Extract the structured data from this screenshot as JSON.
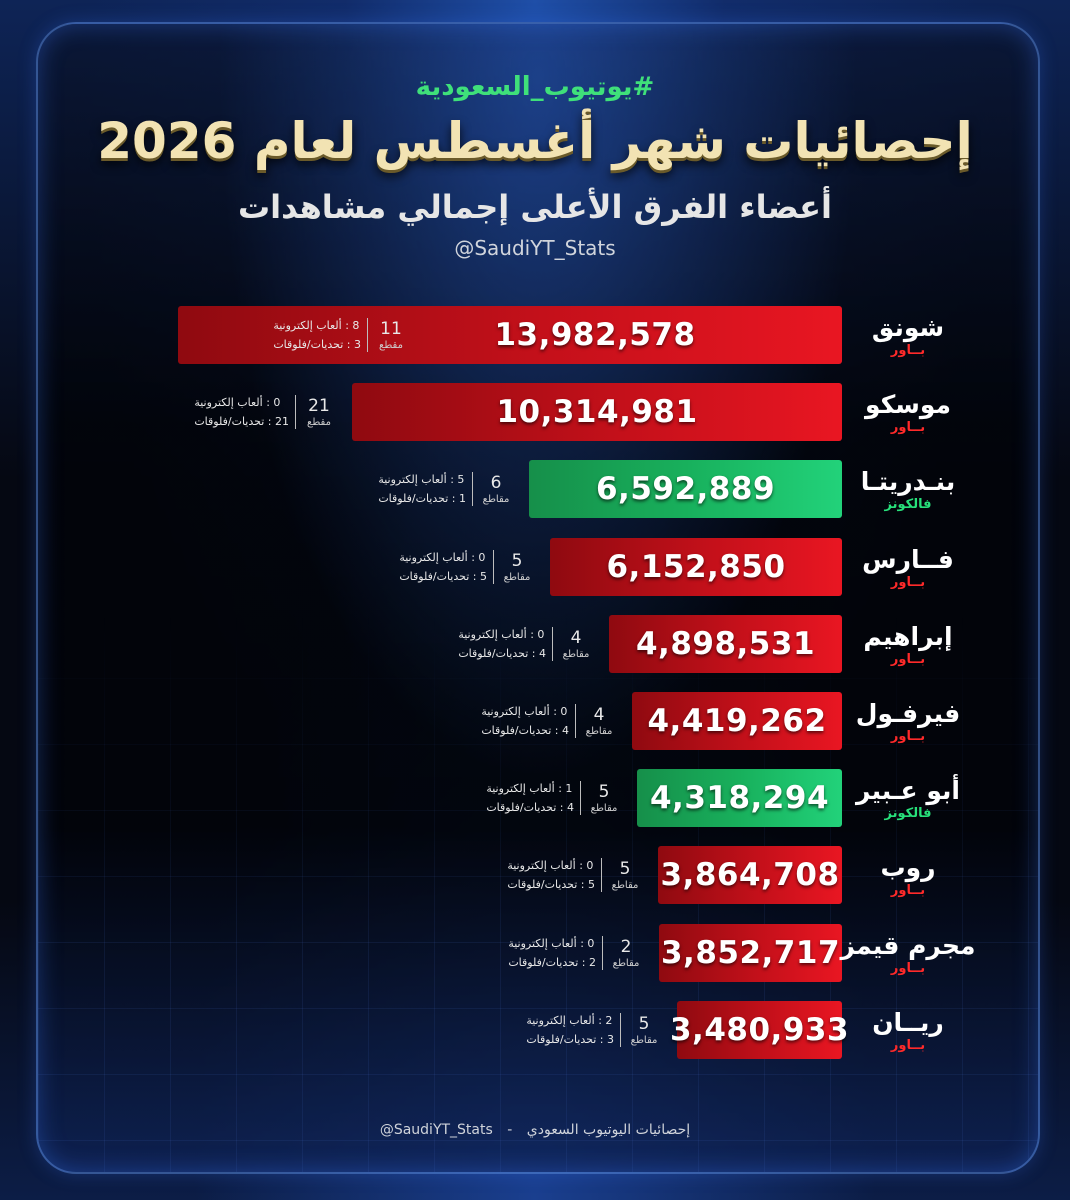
{
  "header": {
    "hashtag": "#يوتيوب_السعودية",
    "title": "إحصائيات شهر أغسطس لعام 2026",
    "subtitle": "أعضاء الفرق الأعلى إجمالي مشاهدات",
    "handle": "@SaudiYT_Stats"
  },
  "colors": {
    "red_team": "#d4121c",
    "green_team": "#1cc06a",
    "accent_text": "#f2e3b3"
  },
  "chart_data": {
    "type": "bar",
    "title": "إحصائيات شهر أغسطس لعام 2026",
    "subtitle": "أعضاء الفرق الأعلى إجمالي مشاهدات",
    "orientation": "horizontal",
    "categories": [
      "شونق",
      "موسكو",
      "بندريتا",
      "فارس",
      "إبراهيم",
      "فيرفول",
      "أبو عبير",
      "روب",
      "مجرم قيمز",
      "ريان"
    ],
    "values": [
      13982578,
      10314981,
      6592889,
      6152850,
      4898531,
      4419262,
      4318294,
      3864708,
      3852717,
      3480933
    ],
    "xlim": [
      0,
      13982578
    ]
  },
  "members": [
    {
      "name": "شونق",
      "team": "بــاور",
      "team_color": "red",
      "views": "13,982,578",
      "views_value": 13982578,
      "videos": "11",
      "videos_unit": "مقطع",
      "gaming": "8 : ألعاب إلكترونية",
      "challenges": "3 : تحديات/فلوقات"
    },
    {
      "name": "موسكو",
      "team": "بــاور",
      "team_color": "red",
      "views": "10,314,981",
      "views_value": 10314981,
      "videos": "21",
      "videos_unit": "مقطع",
      "gaming": "0 : ألعاب إلكترونية",
      "challenges": "21 : تحديات/فلوقات"
    },
    {
      "name": "بنـدريتـا",
      "team": "فالكونز",
      "team_color": "green",
      "views": "6,592,889",
      "views_value": 6592889,
      "videos": "6",
      "videos_unit": "مقاطع",
      "gaming": "5 : ألعاب إلكترونية",
      "challenges": "1 : تحديات/فلوقات"
    },
    {
      "name": "فــارس",
      "team": "بــاور",
      "team_color": "red",
      "views": "6,152,850",
      "views_value": 6152850,
      "videos": "5",
      "videos_unit": "مقاطع",
      "gaming": "0 : ألعاب إلكترونية",
      "challenges": "5 : تحديات/فلوقات"
    },
    {
      "name": "إبراهيم",
      "team": "بــاور",
      "team_color": "red",
      "views": "4,898,531",
      "views_value": 4898531,
      "videos": "4",
      "videos_unit": "مقاطع",
      "gaming": "0 : ألعاب إلكترونية",
      "challenges": "4 : تحديات/فلوقات"
    },
    {
      "name": "فيرفـول",
      "team": "بــاور",
      "team_color": "red",
      "views": "4,419,262",
      "views_value": 4419262,
      "videos": "4",
      "videos_unit": "مقاطع",
      "gaming": "0 : ألعاب إلكترونية",
      "challenges": "4 : تحديات/فلوقات"
    },
    {
      "name": "أبو عـبير",
      "team": "فالكونز",
      "team_color": "green",
      "views": "4,318,294",
      "views_value": 4318294,
      "videos": "5",
      "videos_unit": "مقاطع",
      "gaming": "1 : ألعاب إلكترونية",
      "challenges": "4 : تحديات/فلوقات"
    },
    {
      "name": "روب",
      "team": "بــاور",
      "team_color": "red",
      "views": "3,864,708",
      "views_value": 3864708,
      "videos": "5",
      "videos_unit": "مقاطع",
      "gaming": "0 : ألعاب إلكترونية",
      "challenges": "5 : تحديات/فلوقات"
    },
    {
      "name": "مجرم قيمز",
      "team": "بــاور",
      "team_color": "red",
      "views": "3,852,717",
      "views_value": 3852717,
      "videos": "2",
      "videos_unit": "مقاطع",
      "gaming": "0 : ألعاب إلكترونية",
      "challenges": "2 : تحديات/فلوقات"
    },
    {
      "name": "ريــان",
      "team": "بــاور",
      "team_color": "red",
      "views": "3,480,933",
      "views_value": 3480933,
      "videos": "5",
      "videos_unit": "مقاطع",
      "gaming": "2 : ألعاب إلكترونية",
      "challenges": "3 : تحديات/فلوقات"
    }
  ],
  "footer": {
    "text": "إحصائيات اليوتيوب السعودي",
    "separator": "-",
    "handle": "@SaudiYT_Stats"
  }
}
